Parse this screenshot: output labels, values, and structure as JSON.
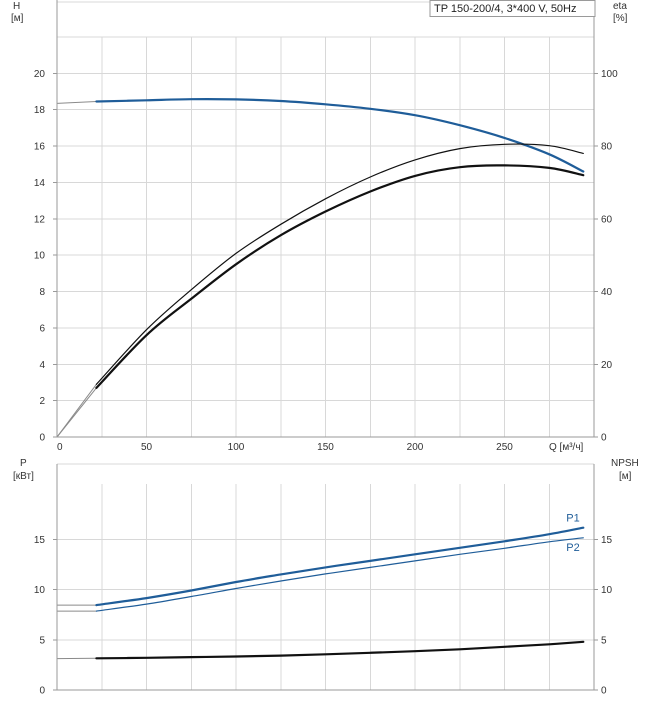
{
  "legend_text": "TP 150-200/4, 3*400 V, 50Hz",
  "colors": {
    "blue": "#1f5d99",
    "black": "#111111",
    "grid": "#d8d8d8",
    "axis": "#9a9a9a"
  },
  "chart_data": [
    {
      "type": "line",
      "panel": "top",
      "x_unit_label": "Q [м³/ч]",
      "x_ticks": [
        0,
        50,
        100,
        150,
        200,
        250
      ],
      "xlim": [
        0,
        300
      ],
      "left_axis": {
        "label_line1": "H",
        "label_line2": "[м]",
        "ticks": [
          0,
          2,
          4,
          6,
          8,
          10,
          12,
          14,
          16,
          18,
          20
        ],
        "ylim": [
          0,
          22
        ]
      },
      "right_axis": {
        "label_line1": "eta",
        "label_line2": "[%]",
        "ticks": [
          0,
          20,
          40,
          60,
          80,
          100
        ],
        "ylim": [
          0,
          110
        ]
      },
      "grid": true,
      "series": [
        {
          "axis": "left",
          "color": "#1f5d99",
          "width": 2.2,
          "extension": [
            [
              0,
              18.35
            ],
            [
              22,
              18.45
            ]
          ],
          "x": [
            22,
            50,
            75,
            100,
            125,
            150,
            175,
            200,
            225,
            250,
            275,
            294
          ],
          "y": [
            18.45,
            18.52,
            18.58,
            18.57,
            18.48,
            18.3,
            18.05,
            17.7,
            17.15,
            16.45,
            15.55,
            14.6
          ]
        },
        {
          "axis": "right",
          "color": "#111111",
          "width": 1.2,
          "extension": [
            [
              0,
              0
            ],
            [
              22,
              14.5
            ]
          ],
          "x": [
            22,
            50,
            75,
            100,
            125,
            150,
            175,
            200,
            225,
            250,
            275,
            294
          ],
          "y": [
            14.5,
            29.5,
            40.5,
            50.5,
            58.5,
            65.5,
            71.5,
            76.2,
            79.3,
            80.5,
            80.1,
            78.0
          ]
        },
        {
          "axis": "right",
          "color": "#111111",
          "width": 2.2,
          "extension": [
            [
              0,
              0
            ],
            [
              22,
              13.5
            ]
          ],
          "x": [
            22,
            50,
            75,
            100,
            125,
            150,
            175,
            200,
            225,
            250,
            275,
            294
          ],
          "y": [
            13.5,
            28.0,
            38.0,
            47.5,
            55.5,
            62.0,
            67.5,
            71.8,
            74.2,
            74.7,
            74.0,
            72.0
          ]
        }
      ]
    },
    {
      "type": "line",
      "panel": "bottom",
      "xlim": [
        0,
        300
      ],
      "left_axis": {
        "label_line1": "P",
        "label_line2": "[кВт]",
        "ticks": [
          0,
          5,
          10,
          15
        ],
        "ylim": [
          0,
          20.5
        ]
      },
      "right_axis": {
        "label_line1": "NPSH",
        "label_line2": "[м]",
        "ticks": [
          0,
          5,
          10,
          15
        ],
        "ylim": [
          0,
          20.5
        ]
      },
      "grid": true,
      "series": [
        {
          "name": "P1",
          "axis": "left",
          "color": "#1f5d99",
          "width": 2.2,
          "extension": [
            [
              0,
              8.45
            ],
            [
              22,
              8.45
            ]
          ],
          "x": [
            22,
            50,
            75,
            100,
            125,
            150,
            175,
            200,
            225,
            250,
            275,
            294
          ],
          "y": [
            8.45,
            9.15,
            9.9,
            10.75,
            11.5,
            12.2,
            12.85,
            13.5,
            14.15,
            14.8,
            15.5,
            16.15
          ]
        },
        {
          "name": "P2",
          "axis": "left",
          "color": "#1f5d99",
          "width": 1.2,
          "extension": [
            [
              0,
              7.85
            ],
            [
              22,
              7.85
            ]
          ],
          "x": [
            22,
            50,
            75,
            100,
            125,
            150,
            175,
            200,
            225,
            250,
            275,
            294
          ],
          "y": [
            7.85,
            8.55,
            9.3,
            10.1,
            10.85,
            11.55,
            12.2,
            12.85,
            13.5,
            14.1,
            14.75,
            15.15
          ]
        },
        {
          "axis": "right",
          "color": "#111111",
          "width": 2.2,
          "extension": [
            [
              0,
              3.12
            ],
            [
              22,
              3.15
            ]
          ],
          "x": [
            22,
            50,
            75,
            100,
            125,
            150,
            175,
            200,
            225,
            250,
            275,
            294
          ],
          "y": [
            3.15,
            3.2,
            3.27,
            3.33,
            3.42,
            3.55,
            3.7,
            3.86,
            4.05,
            4.3,
            4.55,
            4.8
          ]
        }
      ]
    }
  ]
}
